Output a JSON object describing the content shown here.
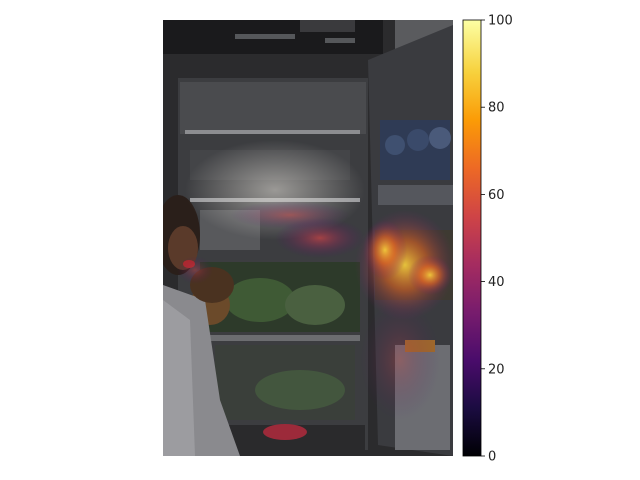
{
  "chart_data": {
    "type": "heatmap",
    "title": "",
    "xlabel": "",
    "ylabel": "",
    "axes_visible": false,
    "background_image": "dark photo of an open refrigerator with a person biting a red vegetable on the left",
    "colormap": "inferno",
    "colorbar": {
      "vmin": 0,
      "vmax": 100,
      "ticks": [
        0,
        20,
        40,
        60,
        80,
        100
      ],
      "tick_labels": [
        "0",
        "20",
        "40",
        "60",
        "80",
        "100"
      ],
      "placement": "right"
    },
    "colors": {
      "cmap_stops": [
        "#000004",
        "#1b0c41",
        "#4a0c6b",
        "#781c6d",
        "#a52c60",
        "#cf4446",
        "#ed6925",
        "#fb9b06",
        "#f7d13d",
        "#fcffa4"
      ]
    }
  }
}
